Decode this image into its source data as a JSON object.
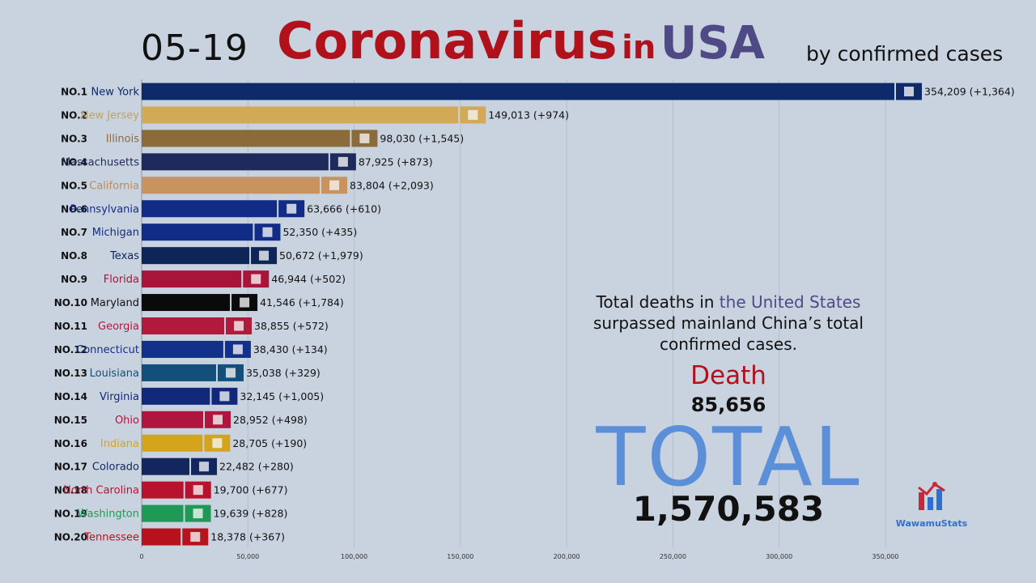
{
  "header": {
    "date": "05-19",
    "title_main": "Coronavirus",
    "title_in": "in",
    "title_country": "USA",
    "subtitle": "by confirmed cases"
  },
  "note": {
    "part1": "Total deaths in",
    "part2": "the United States",
    "part3": "surpassed mainland China’s total confirmed cases."
  },
  "stats": {
    "death_label": "Death",
    "death_value": "85,656",
    "total_label": "TOTAL",
    "total_value": "1,570,583"
  },
  "logo": {
    "name": "WawamuStats"
  },
  "chart_data": {
    "type": "bar",
    "orientation": "horizontal",
    "title": "Coronavirus in USA",
    "subtitle": "by confirmed cases",
    "xlim": [
      0,
      370000
    ],
    "xticks": [
      0,
      50000,
      100000,
      150000,
      200000,
      250000,
      300000,
      350000
    ],
    "xtick_labels": [
      "0",
      "50,000",
      "100,000",
      "150,000",
      "200,000",
      "250,000",
      "300,000",
      "350,000"
    ],
    "grid": true,
    "categories": [
      "New York",
      "New Jersey",
      "Illinois",
      "Massachusetts",
      "California",
      "Pennsylvania",
      "Michigan",
      "Texas",
      "Florida",
      "Maryland",
      "Georgia",
      "Connecticut",
      "Louisiana",
      "Virginia",
      "Ohio",
      "Indiana",
      "Colorado",
      "North Carolina",
      "Washington",
      "Tennessee"
    ],
    "ranks": [
      "NO.1",
      "NO.2",
      "NO.3",
      "NO.4",
      "NO.5",
      "NO.6",
      "NO.7",
      "NO.8",
      "NO.9",
      "NO.10",
      "NO.11",
      "NO.12",
      "NO.13",
      "NO.14",
      "NO.15",
      "NO.16",
      "NO.17",
      "NO.18",
      "NO.19",
      "NO.20"
    ],
    "values": [
      354209,
      149013,
      98030,
      87925,
      83804,
      63666,
      52350,
      50672,
      46944,
      41546,
      38855,
      38430,
      35038,
      32145,
      28952,
      28705,
      22482,
      19700,
      19639,
      18378
    ],
    "value_labels": [
      "354,209 (+1,364)",
      "149,013 (+974)",
      "98,030 (+1,545)",
      "87,925 (+873)",
      "83,804 (+2,093)",
      "63,666 (+610)",
      "52,350 (+435)",
      "50,672 (+1,979)",
      "46,944 (+502)",
      "41,546 (+1,784)",
      "38,855 (+572)",
      "38,430 (+134)",
      "35,038 (+329)",
      "32,145 (+1,005)",
      "28,952 (+498)",
      "28,705 (+190)",
      "22,482 (+280)",
      "19,700 (+677)",
      "19,639 (+828)",
      "18,378 (+367)"
    ],
    "colors": [
      "#0e2a6b",
      "#d2a957",
      "#8c6b3a",
      "#1f2a5c",
      "#c8935f",
      "#112c86",
      "#112c86",
      "#0f2558",
      "#a8143a",
      "#0a0a0a",
      "#b11a3a",
      "#13308a",
      "#134f7a",
      "#122878",
      "#b01540",
      "#d4a51c",
      "#13275e",
      "#b8122e",
      "#1f9a56",
      "#b8121c"
    ],
    "label_colors": [
      "#0e2a6b",
      "#c9a155",
      "#8c6b3a",
      "#1f2a5c",
      "#c08a57",
      "#112c86",
      "#112c86",
      "#0f2558",
      "#a8143a",
      "#111111",
      "#b11a3a",
      "#13308a",
      "#134f7a",
      "#122878",
      "#b01540",
      "#d4a51c",
      "#13275e",
      "#b8122e",
      "#1f9a56",
      "#b8121c"
    ]
  }
}
